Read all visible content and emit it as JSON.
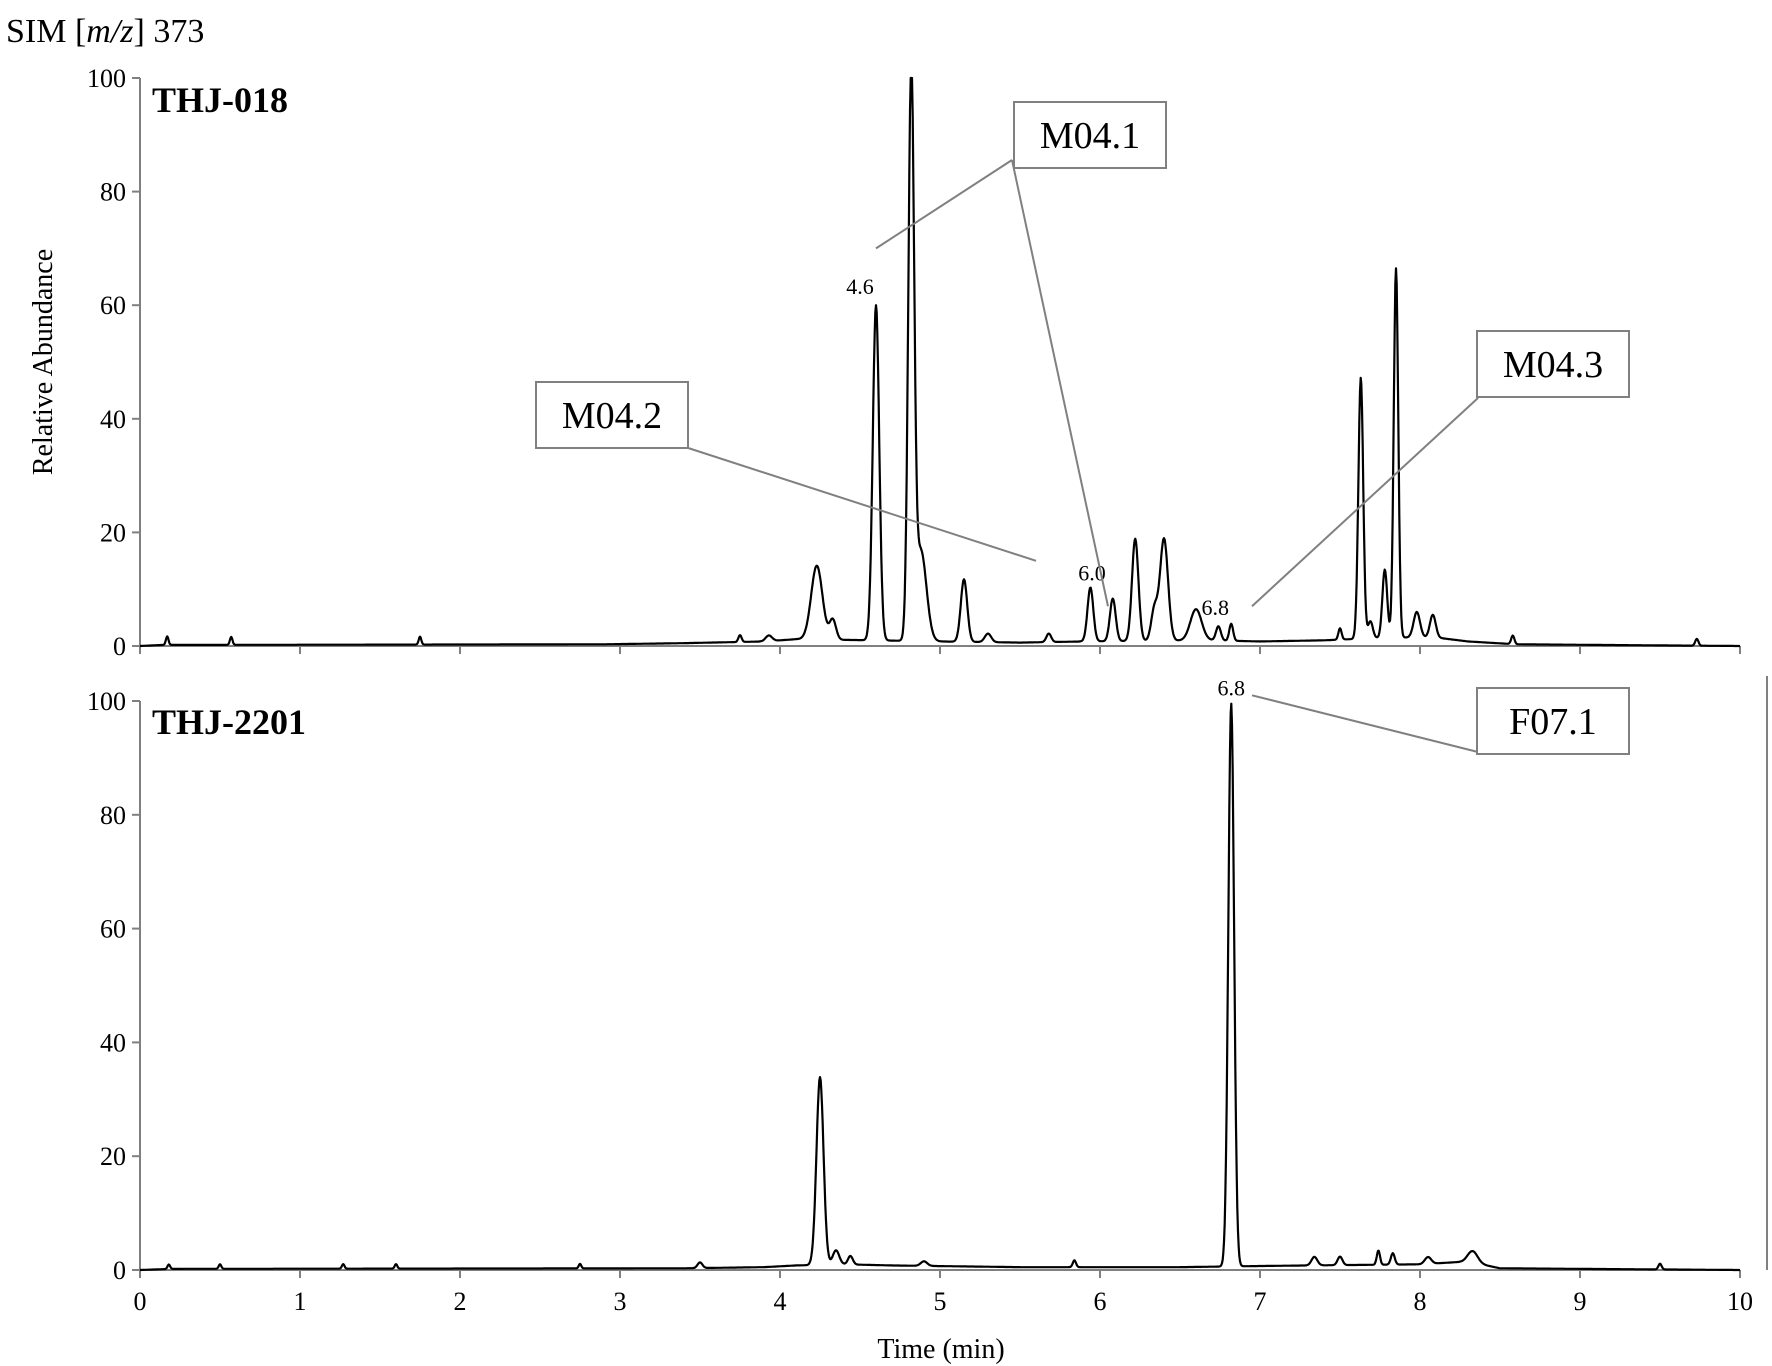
{
  "header": {
    "prefix": "SIM [",
    "mz_italic": "m/z",
    "suffix": "] 373"
  },
  "chart_data": [
    {
      "type": "line",
      "panel": "top",
      "panel_label": "THJ-018",
      "ylabel": "Relative Abundance",
      "xlabel": "",
      "xlim": [
        0,
        10
      ],
      "ylim": [
        0,
        100
      ],
      "x_ticks": [],
      "y_ticks": [
        "0",
        "20",
        "40",
        "60",
        "80",
        "100"
      ],
      "series": [
        {
          "baseline": [
            [
              0,
              0
            ],
            [
              0.15,
              0.2
            ],
            [
              0.5,
              0.2
            ],
            [
              2.9,
              0.3
            ],
            [
              3.4,
              0.5
            ],
            [
              3.9,
              0.8
            ],
            [
              4.1,
              1.2
            ],
            [
              4.6,
              1.0
            ],
            [
              5.0,
              0.8
            ],
            [
              5.5,
              0.6
            ],
            [
              5.9,
              0.8
            ],
            [
              6.7,
              1.0
            ],
            [
              7.0,
              0.8
            ],
            [
              7.4,
              1.0
            ],
            [
              7.8,
              1.5
            ],
            [
              8.1,
              1.5
            ],
            [
              8.3,
              0.8
            ],
            [
              8.6,
              0.3
            ],
            [
              10,
              0
            ]
          ],
          "peaks": [
            {
              "x": 0.17,
              "h": 1.5,
              "w": 0.008
            },
            {
              "x": 0.57,
              "h": 1.4,
              "w": 0.008
            },
            {
              "x": 1.75,
              "h": 1.4,
              "w": 0.008
            },
            {
              "x": 3.75,
              "h": 1.2,
              "w": 0.01
            },
            {
              "x": 3.93,
              "h": 1.0,
              "w": 0.02
            },
            {
              "x": 4.23,
              "h": 13,
              "w": 0.035
            },
            {
              "x": 4.33,
              "h": 3.5,
              "w": 0.02
            },
            {
              "x": 4.6,
              "h": 59,
              "w": 0.02
            },
            {
              "x": 4.82,
              "h": 99,
              "w": 0.018
            },
            {
              "x": 4.88,
              "h": 16,
              "w": 0.035
            },
            {
              "x": 5.15,
              "h": 11,
              "w": 0.02
            },
            {
              "x": 5.3,
              "h": 1.5,
              "w": 0.02
            },
            {
              "x": 5.68,
              "h": 1.5,
              "w": 0.015
            },
            {
              "x": 5.94,
              "h": 9.5,
              "w": 0.018
            },
            {
              "x": 6.08,
              "h": 7.5,
              "w": 0.018
            },
            {
              "x": 6.22,
              "h": 18,
              "w": 0.02
            },
            {
              "x": 6.34,
              "h": 5.5,
              "w": 0.02
            },
            {
              "x": 6.4,
              "h": 18,
              "w": 0.025
            },
            {
              "x": 6.6,
              "h": 5.5,
              "w": 0.035
            },
            {
              "x": 6.74,
              "h": 2.5,
              "w": 0.015
            },
            {
              "x": 6.82,
              "h": 3,
              "w": 0.012
            },
            {
              "x": 7.5,
              "h": 2,
              "w": 0.01
            },
            {
              "x": 7.63,
              "h": 46,
              "w": 0.015
            },
            {
              "x": 7.69,
              "h": 3,
              "w": 0.015
            },
            {
              "x": 7.78,
              "h": 12,
              "w": 0.015
            },
            {
              "x": 7.85,
              "h": 65,
              "w": 0.014
            },
            {
              "x": 7.98,
              "h": 4.5,
              "w": 0.02
            },
            {
              "x": 8.08,
              "h": 4,
              "w": 0.018
            },
            {
              "x": 8.58,
              "h": 1.5,
              "w": 0.01
            },
            {
              "x": 9.73,
              "h": 1.2,
              "w": 0.01
            }
          ]
        }
      ],
      "peak_labels": [
        {
          "text": "4.6",
          "x": 4.5,
          "y": 62
        },
        {
          "text": "6.0",
          "x": 5.95,
          "y": 11.5
        },
        {
          "text": "6.8",
          "x": 6.72,
          "y": 5.5
        }
      ],
      "callouts": [
        {
          "label": "M04.1",
          "leaders": [
            [
              4.6,
              70
            ],
            [
              6.05,
              7
            ]
          ]
        },
        {
          "label": "M04.2",
          "leaders": [
            [
              5.6,
              15
            ]
          ]
        },
        {
          "label": "M04.3",
          "leaders": [
            [
              6.95,
              7
            ]
          ]
        }
      ]
    },
    {
      "type": "line",
      "panel": "bottom",
      "panel_label": "THJ-2201",
      "ylabel": "",
      "xlabel": "Time (min)",
      "xlim": [
        0,
        10
      ],
      "ylim": [
        0,
        100
      ],
      "x_ticks": [
        "0",
        "1",
        "2",
        "3",
        "4",
        "5",
        "6",
        "7",
        "8",
        "9",
        "10"
      ],
      "y_ticks": [
        "0",
        "20",
        "40",
        "60",
        "80",
        "100"
      ],
      "series": [
        {
          "baseline": [
            [
              0,
              0
            ],
            [
              0.2,
              0.2
            ],
            [
              3.4,
              0.3
            ],
            [
              3.9,
              0.5
            ],
            [
              4.1,
              0.8
            ],
            [
              4.4,
              1.0
            ],
            [
              4.7,
              0.8
            ],
            [
              5.5,
              0.5
            ],
            [
              6.5,
              0.5
            ],
            [
              6.75,
              0.6
            ],
            [
              7.0,
              0.7
            ],
            [
              7.3,
              0.8
            ],
            [
              8.0,
              1.0
            ],
            [
              8.3,
              1.5
            ],
            [
              8.5,
              0.3
            ],
            [
              10,
              0
            ]
          ],
          "peaks": [
            {
              "x": 0.18,
              "h": 0.8,
              "w": 0.008
            },
            {
              "x": 0.5,
              "h": 0.8,
              "w": 0.008
            },
            {
              "x": 1.27,
              "h": 0.8,
              "w": 0.008
            },
            {
              "x": 1.6,
              "h": 0.8,
              "w": 0.008
            },
            {
              "x": 2.75,
              "h": 0.8,
              "w": 0.008
            },
            {
              "x": 3.5,
              "h": 1.0,
              "w": 0.015
            },
            {
              "x": 4.25,
              "h": 33,
              "w": 0.022
            },
            {
              "x": 4.35,
              "h": 2.5,
              "w": 0.02
            },
            {
              "x": 4.44,
              "h": 1.5,
              "w": 0.015
            },
            {
              "x": 4.9,
              "h": 0.8,
              "w": 0.02
            },
            {
              "x": 5.84,
              "h": 1.2,
              "w": 0.01
            },
            {
              "x": 6.82,
              "h": 99,
              "w": 0.018
            },
            {
              "x": 7.34,
              "h": 1.5,
              "w": 0.018
            },
            {
              "x": 7.5,
              "h": 1.5,
              "w": 0.015
            },
            {
              "x": 7.74,
              "h": 2.5,
              "w": 0.01
            },
            {
              "x": 7.83,
              "h": 2.0,
              "w": 0.012
            },
            {
              "x": 8.05,
              "h": 1.2,
              "w": 0.02
            },
            {
              "x": 8.33,
              "h": 2.0,
              "w": 0.03
            },
            {
              "x": 9.5,
              "h": 1.0,
              "w": 0.01
            }
          ]
        }
      ],
      "peak_labels": [
        {
          "text": "6.8",
          "x": 6.82,
          "y": 101
        }
      ],
      "callouts": [
        {
          "label": "F07.1",
          "leaders": [
            [
              6.95,
              101
            ]
          ]
        }
      ]
    }
  ]
}
